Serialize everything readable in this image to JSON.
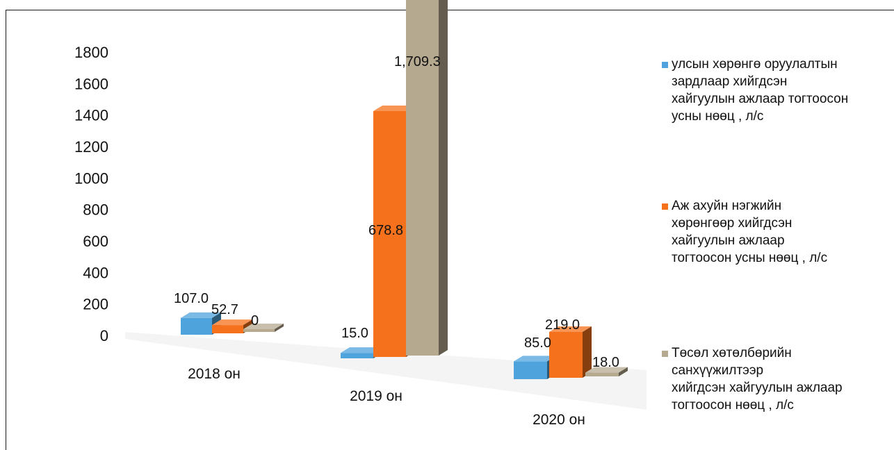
{
  "chart_data": {
    "type": "bar",
    "categories": [
      "2018 он",
      "2019 он",
      "2020 он"
    ],
    "yticks": [
      "0",
      "200",
      "400",
      "600",
      "800",
      "1000",
      "1200",
      "1400",
      "1600",
      "1800"
    ],
    "ylim": [
      0,
      1800
    ],
    "series": [
      {
        "name": "улсын хөрөнгө  оруулалтын\n  зардлаар хийгдсэн\n хайгуулын ажлаар тогтоосон\n усны нөөц , л/с",
        "values": [
          107.0,
          15.0,
          85.0
        ],
        "labels": [
          "107.0",
          "15.0",
          "85.0"
        ],
        "color": "#4fa3dc"
      },
      {
        "name": "Аж ахуйн нэгжийн\n  хөрөнгөөр хийгдсэн\n  хайгуулын ажлаар\n тогтоосон усны нөөц , л/с",
        "values": [
          52.7,
          678.8,
          219.0
        ],
        "labels": [
          "52.7",
          "678.8",
          "219.0"
        ],
        "color": "#f5711c"
      },
      {
        "name": "Төсөл хөтөлбөрийн\n санхүүжилтээр\n хийгдсэн хайгуулын ажлаар\n тогтоосон нөөц , л/с",
        "values": [
          0,
          1709.3,
          18.0
        ],
        "labels": [
          "0",
          "1,709.3",
          "18.0"
        ],
        "color": "#b5a990"
      }
    ],
    "legend_position": "right"
  }
}
